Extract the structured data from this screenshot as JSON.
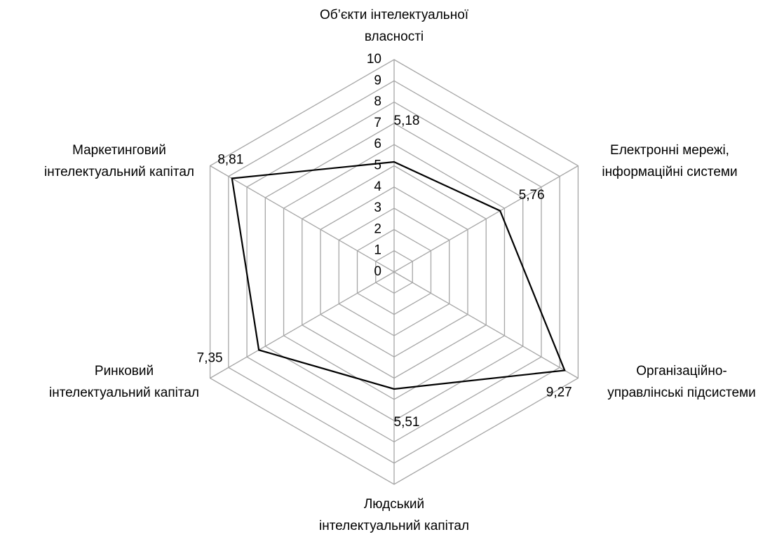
{
  "chart_data": {
    "type": "radar",
    "categories": [
      "Об’єкти інтелектуальної\nвласності",
      "Електронні мережі,\nінформаційні системи",
      "Організаційно-\nуправлінські підсистеми",
      "Людський\nінтелектуальний капітал",
      "Ринковий\nінтелектуальний капітал",
      "Маркетинговий\nінтелектуальний капітал"
    ],
    "values": [
      5.18,
      5.76,
      9.27,
      5.51,
      7.35,
      8.81
    ],
    "value_labels": [
      "5,18",
      "5,76",
      "9,27",
      "5,51",
      "7,35",
      "8,81"
    ],
    "color": "#000000",
    "ylim": [
      0,
      10
    ],
    "yticks": [
      0,
      1,
      2,
      3,
      4,
      5,
      6,
      7,
      8,
      9,
      10
    ],
    "grid": true
  }
}
